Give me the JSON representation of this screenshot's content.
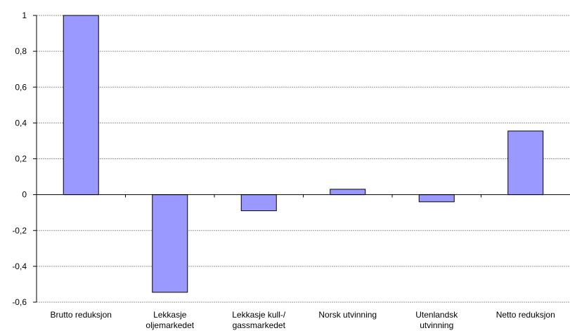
{
  "chart_data": {
    "type": "bar",
    "categories": [
      [
        "Brutto reduksjon"
      ],
      [
        "Lekkasje",
        "oljemarkedet"
      ],
      [
        "Lekkasje kull-/",
        "gassmarkedet"
      ],
      [
        "Norsk utvinning"
      ],
      [
        "Utenlandsk",
        "utvinning"
      ],
      [
        "Netto reduksjon"
      ]
    ],
    "values": [
      1.0,
      -0.545,
      -0.09,
      0.03,
      -0.04,
      0.355
    ],
    "ylim": [
      -0.6,
      1.0
    ],
    "yticks": [
      "1",
      "0,8",
      "0,6",
      "0,4",
      "0,2",
      "0",
      "-0,2",
      "-0,4",
      "-0,6"
    ],
    "ytick_values": [
      1.0,
      0.8,
      0.6,
      0.4,
      0.2,
      0.0,
      -0.2,
      -0.4,
      -0.6
    ],
    "grid": true,
    "bar_color": "#9999ff",
    "bar_edge": "#000000",
    "grid_color": "#999999"
  }
}
